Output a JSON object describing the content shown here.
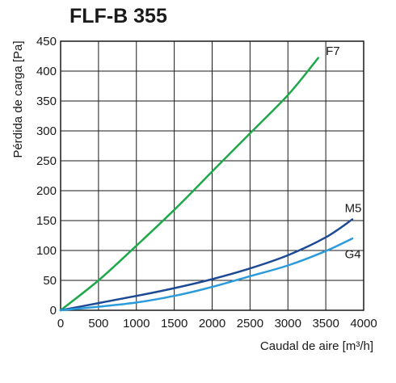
{
  "chart_data": {
    "type": "line",
    "title": "FLF-B 355",
    "xlabel": "Caudal de aire [m³/h]",
    "ylabel": "Pérdida de carga [Pa]",
    "xlim": [
      0,
      4000
    ],
    "ylim": [
      0,
      450
    ],
    "xticks": [
      0,
      500,
      1000,
      1500,
      2000,
      2500,
      3000,
      3500,
      4000
    ],
    "yticks": [
      0,
      50,
      100,
      150,
      200,
      250,
      300,
      350,
      400,
      450
    ],
    "grid": true,
    "series": [
      {
        "name": "F7",
        "color": "#1fa84a",
        "label_at": [
          3500,
          427
        ],
        "x": [
          0,
          500,
          1000,
          1500,
          2000,
          2500,
          3000,
          3400
        ],
        "y": [
          0,
          50,
          108,
          168,
          232,
          296,
          360,
          422
        ]
      },
      {
        "name": "M5",
        "color": "#1d4a94",
        "label_at": [
          3750,
          164
        ],
        "x": [
          0,
          500,
          1000,
          1500,
          2000,
          2500,
          3000,
          3500,
          3850
        ],
        "y": [
          0,
          12,
          24,
          37,
          52,
          70,
          92,
          122,
          152
        ]
      },
      {
        "name": "G4",
        "color": "#2b9bdc",
        "label_at": [
          3750,
          87
        ],
        "x": [
          0,
          500,
          1000,
          1500,
          2000,
          2500,
          3000,
          3500,
          3850
        ],
        "y": [
          0,
          6,
          13,
          24,
          39,
          57,
          75,
          99,
          120
        ]
      }
    ]
  }
}
